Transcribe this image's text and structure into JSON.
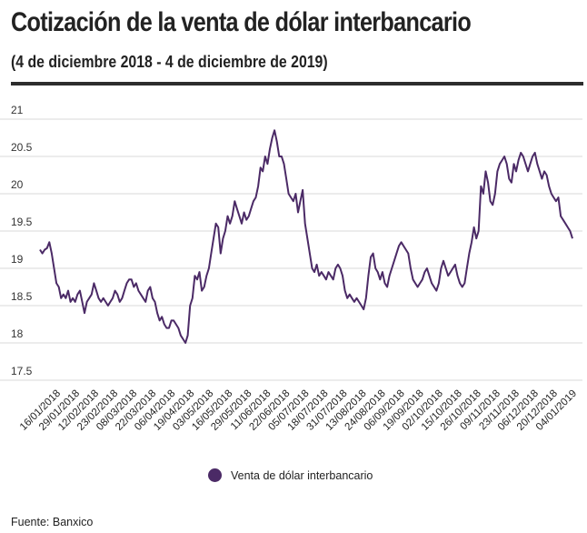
{
  "title": "Cotización de la venta de dólar interbancario",
  "subtitle": "(4 de diciembre 2018 - 4 de diciembre de 2019)",
  "source": "Fuente: Banxico",
  "colors": {
    "series": "#4b2a66",
    "grid": "#d9d9d9",
    "rule": "#2d2d2d"
  },
  "chart_data": {
    "type": "line",
    "title": "Cotización de la venta de dólar interbancario",
    "subtitle": "(4 de diciembre 2018 - 4 de diciembre de 2019)",
    "xlabel": "",
    "ylabel": "",
    "ylim": [
      17.5,
      21
    ],
    "yticks": [
      21,
      20.5,
      20,
      19.5,
      19,
      18.5,
      18,
      17.5
    ],
    "grid": true,
    "legend_position": "bottom",
    "x_tick_labels": [
      "16/01/2018",
      "29/01/2018",
      "12/02/2018",
      "23/02/2018",
      "08/03/2018",
      "22/03/2018",
      "06/04/2018",
      "19/04/2018",
      "03/05/2018",
      "16/05/2018",
      "29/05/2018",
      "11/06/2018",
      "22/06/2018",
      "05/07/2018",
      "18/07/2018",
      "31/07/2018",
      "13/08/2018",
      "24/08/2018",
      "06/09/2018",
      "19/09/2018",
      "02/10/2018",
      "15/10/2018",
      "26/10/2018",
      "09/11/2018",
      "23/11/2018",
      "06/12/2018",
      "20/12/2018",
      "04/01/2019"
    ],
    "series": [
      {
        "name": "Venta de dólar interbancario",
        "color": "#4b2a66",
        "values": [
          19.25,
          19.2,
          19.25,
          19.27,
          19.35,
          19.2,
          19.0,
          18.8,
          18.75,
          18.6,
          18.65,
          18.6,
          18.7,
          18.55,
          18.6,
          18.55,
          18.65,
          18.7,
          18.55,
          18.4,
          18.55,
          18.6,
          18.65,
          18.8,
          18.7,
          18.6,
          18.55,
          18.6,
          18.55,
          18.5,
          18.55,
          18.6,
          18.7,
          18.65,
          18.55,
          18.6,
          18.7,
          18.8,
          18.85,
          18.85,
          18.75,
          18.8,
          18.7,
          18.65,
          18.6,
          18.55,
          18.7,
          18.75,
          18.6,
          18.55,
          18.4,
          18.3,
          18.35,
          18.25,
          18.2,
          18.2,
          18.3,
          18.3,
          18.25,
          18.2,
          18.1,
          18.05,
          18.0,
          18.1,
          18.5,
          18.6,
          18.9,
          18.85,
          18.95,
          18.7,
          18.75,
          18.9,
          19.0,
          19.2,
          19.4,
          19.6,
          19.55,
          19.2,
          19.4,
          19.5,
          19.7,
          19.6,
          19.7,
          19.9,
          19.8,
          19.7,
          19.6,
          19.75,
          19.65,
          19.7,
          19.8,
          19.9,
          19.95,
          20.1,
          20.35,
          20.3,
          20.5,
          20.4,
          20.6,
          20.75,
          20.85,
          20.7,
          20.5,
          20.5,
          20.4,
          20.2,
          20.0,
          19.95,
          19.9,
          20.0,
          19.75,
          19.9,
          20.05,
          19.6,
          19.4,
          19.2,
          19.0,
          18.95,
          19.05,
          18.9,
          18.95,
          18.9,
          18.85,
          18.95,
          18.9,
          18.85,
          19.0,
          19.05,
          19.0,
          18.9,
          18.7,
          18.6,
          18.65,
          18.6,
          18.55,
          18.6,
          18.55,
          18.5,
          18.45,
          18.6,
          18.9,
          19.15,
          19.2,
          19.0,
          18.95,
          18.85,
          18.95,
          18.8,
          18.75,
          18.9,
          19.0,
          19.1,
          19.2,
          19.3,
          19.35,
          19.3,
          19.25,
          19.2,
          19.0,
          18.85,
          18.8,
          18.75,
          18.8,
          18.85,
          18.95,
          19.0,
          18.9,
          18.8,
          18.75,
          18.7,
          18.8,
          19.0,
          19.1,
          19.0,
          18.9,
          18.95,
          19.0,
          19.05,
          18.9,
          18.8,
          18.75,
          18.8,
          19.0,
          19.2,
          19.35,
          19.55,
          19.4,
          19.5,
          20.1,
          20.0,
          20.3,
          20.15,
          19.9,
          19.85,
          20.0,
          20.3,
          20.4,
          20.45,
          20.5,
          20.4,
          20.2,
          20.15,
          20.4,
          20.3,
          20.45,
          20.55,
          20.5,
          20.4,
          20.3,
          20.4,
          20.5,
          20.55,
          20.4,
          20.3,
          20.2,
          20.3,
          20.25,
          20.1,
          20.0,
          19.95,
          19.9,
          19.95,
          19.7,
          19.65,
          19.6,
          19.55,
          19.5,
          19.4
        ]
      }
    ]
  }
}
